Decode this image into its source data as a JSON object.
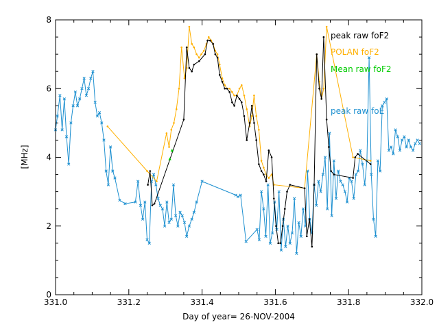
{
  "chart_data": {
    "type": "line",
    "xlabel": "Day of year= 26-NOV-2004",
    "ylabel": "[MHz]",
    "xlim": [
      331.0,
      332.0
    ],
    "ylim": [
      0,
      8
    ],
    "xticks": [
      {
        "value": 331.0,
        "label": "331.0"
      },
      {
        "value": 331.2,
        "label": "331.2"
      },
      {
        "value": 331.4,
        "label": "331.4"
      },
      {
        "value": 331.6,
        "label": "331.6"
      },
      {
        "value": 331.8,
        "label": "331.8"
      },
      {
        "value": 332.0,
        "label": "332.0"
      }
    ],
    "yticks": [
      {
        "value": 0,
        "label": "0"
      },
      {
        "value": 2,
        "label": "2"
      },
      {
        "value": 4,
        "label": "4"
      },
      {
        "value": 6,
        "label": "6"
      },
      {
        "value": 8,
        "label": "8"
      }
    ],
    "series": [
      {
        "name": "peak raw foF2",
        "color": "#000000",
        "marker": "dot",
        "x": [
          331.252,
          331.258,
          331.264,
          331.27,
          331.35,
          331.358,
          331.365,
          331.372,
          331.378,
          331.392,
          331.408,
          331.415,
          331.422,
          331.43,
          331.436,
          331.442,
          331.448,
          331.455,
          331.462,
          331.468,
          331.475,
          331.482,
          331.488,
          331.495,
          331.502,
          331.508,
          331.515,
          331.522,
          331.53,
          331.536,
          331.542,
          331.548,
          331.555,
          331.562,
          331.568,
          331.575,
          331.582,
          331.59,
          331.596,
          331.602,
          331.608,
          331.614,
          331.62,
          331.626,
          331.632,
          331.64,
          331.68,
          331.686,
          331.693,
          331.7,
          331.706,
          331.713,
          331.72,
          331.726,
          331.732,
          331.74,
          331.746,
          331.752,
          331.76,
          331.812,
          331.818,
          331.825,
          331.86
        ],
        "y": [
          3.2,
          3.6,
          2.6,
          2.65,
          5.1,
          7.2,
          6.6,
          6.5,
          6.7,
          6.8,
          7.0,
          7.4,
          7.4,
          7.3,
          7.0,
          6.9,
          6.4,
          6.2,
          6.0,
          6.0,
          5.9,
          5.6,
          5.5,
          5.8,
          5.7,
          5.6,
          5.2,
          4.5,
          5.0,
          5.5,
          5.0,
          4.5,
          3.8,
          3.6,
          3.5,
          3.3,
          4.2,
          4.0,
          2.8,
          2.0,
          1.5,
          1.5,
          2.0,
          2.5,
          3.0,
          3.2,
          3.1,
          1.7,
          2.2,
          1.4,
          3.2,
          7.0,
          6.0,
          5.7,
          7.5,
          5.1,
          4.3,
          3.6,
          3.5,
          3.4,
          4.0,
          4.1,
          3.8
        ]
      },
      {
        "name": "POLAN foF2",
        "color": "#ffb000",
        "marker": "dot",
        "x": [
          331.142,
          331.25,
          331.276,
          331.303,
          331.31,
          331.316,
          331.323,
          331.33,
          331.337,
          331.344,
          331.352,
          331.358,
          331.365,
          331.372,
          331.378,
          331.385,
          331.392,
          331.398,
          331.405,
          331.412,
          331.418,
          331.425,
          331.43,
          331.436,
          331.442,
          331.448,
          331.455,
          331.462,
          331.468,
          331.475,
          331.482,
          331.488,
          331.495,
          331.502,
          331.508,
          331.515,
          331.522,
          331.53,
          331.536,
          331.542,
          331.548,
          331.555,
          331.562,
          331.568,
          331.575,
          331.582,
          331.59,
          331.596,
          331.68,
          331.713,
          331.72,
          331.726,
          331.732,
          331.74,
          331.812,
          331.86
        ],
        "y": [
          4.9,
          3.6,
          3.3,
          4.7,
          4.3,
          4.8,
          5.0,
          5.4,
          6.0,
          7.2,
          6.3,
          6.6,
          7.8,
          7.3,
          7.2,
          7.0,
          6.9,
          7.0,
          7.1,
          7.3,
          7.5,
          7.4,
          7.3,
          7.1,
          7.0,
          6.7,
          6.3,
          6.1,
          6.0,
          6.0,
          5.9,
          5.8,
          5.8,
          6.0,
          6.1,
          5.8,
          5.4,
          4.9,
          5.2,
          5.8,
          5.2,
          4.8,
          3.9,
          3.7,
          3.5,
          3.4,
          3.5,
          3.2,
          3.1,
          7.0,
          6.2,
          5.7,
          6.0,
          7.8,
          4.0,
          3.9
        ]
      },
      {
        "name": "Mean raw foF2",
        "color": "#00cc00",
        "marker": "triangle",
        "line": false,
        "x": [
          331.312,
          331.318
        ],
        "y": [
          3.95,
          4.2
        ]
      },
      {
        "name": "peak raw foE",
        "color": "#1e90d0",
        "marker": "x",
        "x": [
          331.0,
          331.005,
          331.012,
          331.018,
          331.024,
          331.03,
          331.036,
          331.042,
          331.048,
          331.054,
          331.06,
          331.066,
          331.072,
          331.078,
          331.084,
          331.09,
          331.096,
          331.102,
          331.108,
          331.114,
          331.12,
          331.126,
          331.132,
          331.138,
          331.144,
          331.15,
          331.156,
          331.162,
          331.175,
          331.19,
          331.218,
          331.225,
          331.232,
          331.238,
          331.244,
          331.25,
          331.256,
          331.262,
          331.268,
          331.274,
          331.28,
          331.286,
          331.292,
          331.298,
          331.304,
          331.31,
          331.316,
          331.322,
          331.328,
          331.334,
          331.34,
          331.346,
          331.352,
          331.358,
          331.365,
          331.372,
          331.378,
          331.385,
          331.4,
          331.492,
          331.498,
          331.505,
          331.52,
          331.55,
          331.556,
          331.562,
          331.568,
          331.574,
          331.58,
          331.586,
          331.592,
          331.598,
          331.604,
          331.61,
          331.616,
          331.622,
          331.628,
          331.634,
          331.64,
          331.646,
          331.652,
          331.658,
          331.664,
          331.67,
          331.676,
          331.682,
          331.688,
          331.694,
          331.7,
          331.706,
          331.712,
          331.718,
          331.724,
          331.73,
          331.736,
          331.742,
          331.748,
          331.754,
          331.76,
          331.766,
          331.772,
          331.778,
          331.784,
          331.79,
          331.796,
          331.802,
          331.808,
          331.814,
          331.82,
          331.826,
          331.832,
          331.838,
          331.844,
          331.85,
          331.856,
          331.862,
          331.868,
          331.874,
          331.88,
          331.886,
          331.892,
          331.898,
          331.904,
          331.91,
          331.916,
          331.922,
          331.928,
          331.934,
          331.94,
          331.946,
          331.952,
          331.958,
          331.964,
          331.97,
          331.976,
          331.982,
          331.988,
          331.994
        ],
        "y": [
          4.8,
          5.2,
          5.8,
          4.8,
          5.7,
          4.6,
          3.8,
          5.0,
          5.5,
          5.9,
          5.5,
          5.7,
          6.0,
          6.3,
          5.8,
          6.0,
          6.3,
          6.5,
          5.6,
          5.2,
          5.3,
          5.0,
          4.5,
          3.6,
          3.2,
          4.3,
          3.6,
          3.4,
          2.75,
          2.65,
          2.7,
          3.3,
          2.6,
          2.2,
          2.7,
          1.6,
          1.5,
          3.3,
          3.5,
          3.2,
          2.8,
          2.6,
          2.5,
          2.0,
          2.7,
          2.1,
          2.2,
          3.2,
          2.3,
          2.0,
          2.4,
          2.3,
          2.1,
          1.7,
          2.0,
          2.2,
          2.4,
          2.7,
          3.3,
          2.9,
          2.85,
          2.9,
          1.55,
          1.9,
          1.6,
          3.0,
          2.5,
          1.7,
          3.2,
          1.5,
          1.8,
          2.7,
          1.9,
          3.0,
          1.3,
          2.2,
          1.4,
          2.0,
          1.5,
          1.8,
          2.8,
          1.2,
          2.1,
          1.7,
          2.5,
          2.0,
          3.6,
          2.2,
          1.8,
          3.2,
          2.6,
          3.3,
          3.0,
          3.5,
          4.0,
          2.5,
          4.7,
          2.3,
          3.9,
          2.8,
          3.6,
          3.3,
          3.2,
          3.0,
          2.7,
          3.4,
          3.3,
          2.8,
          3.5,
          3.6,
          4.2,
          3.8,
          3.2,
          3.9,
          6.9,
          3.5,
          2.2,
          1.7,
          3.9,
          3.6,
          5.5,
          5.6,
          5.7,
          4.2,
          4.3,
          4.1,
          4.8,
          4.6,
          4.2,
          4.5,
          4.6,
          4.3,
          4.5,
          4.3,
          4.2,
          4.4,
          4.5,
          4.4
        ]
      }
    ]
  }
}
